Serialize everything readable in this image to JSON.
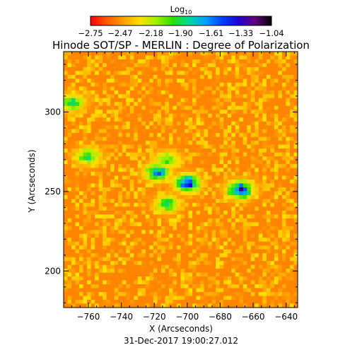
{
  "chart_data": {
    "type": "heatmap",
    "title": "Hinode SOT/SP - MERLIN : Degree of Polarization",
    "xlabel": "X (Arcseconds)",
    "ylabel": "Y (Arcseconds)",
    "timestamp": "31-Dec-2017 19:00:27.012",
    "xlim": [
      -775,
      -633
    ],
    "ylim": [
      177,
      338
    ],
    "x_ticks": [
      "-760",
      "-740",
      "-720",
      "-700",
      "-680",
      "-660",
      "-640"
    ],
    "x_tick_values": [
      -760,
      -740,
      -720,
      -700,
      -680,
      -660,
      -640
    ],
    "y_ticks": [
      "200",
      "250",
      "300"
    ],
    "y_tick_values": [
      200,
      250,
      300
    ],
    "colorbar": {
      "label": "Log₁₀",
      "label_base": "Log",
      "label_subscript": "10",
      "range": [
        -2.75,
        -1.04
      ],
      "ticks": [
        "-2.75",
        "-2.47",
        "-2.18",
        "-1.90",
        "-1.61",
        "-1.33",
        "-1.04"
      ],
      "tick_values": [
        -2.75,
        -2.47,
        -2.18,
        -1.9,
        -1.61,
        -1.33,
        -1.04
      ],
      "colormap": [
        "#ff0000",
        "#ff5a00",
        "#ffa000",
        "#ffe000",
        "#a0f000",
        "#28e000",
        "#00d8a0",
        "#00a0ff",
        "#0040ff",
        "#2000d0",
        "#600080",
        "#000000"
      ]
    },
    "background_level": -2.5,
    "active_features": [
      {
        "x": -700,
        "y": 255,
        "peak": -1.33
      },
      {
        "x": -668,
        "y": 251,
        "peak": -1.33
      },
      {
        "x": -718,
        "y": 262,
        "peak": -1.61
      },
      {
        "x": -760,
        "y": 272,
        "peak": -1.9
      },
      {
        "x": -712,
        "y": 242,
        "peak": -1.9
      },
      {
        "x": -770,
        "y": 306,
        "peak": -1.9
      },
      {
        "x": -712,
        "y": 270,
        "peak": -2.0
      }
    ]
  }
}
